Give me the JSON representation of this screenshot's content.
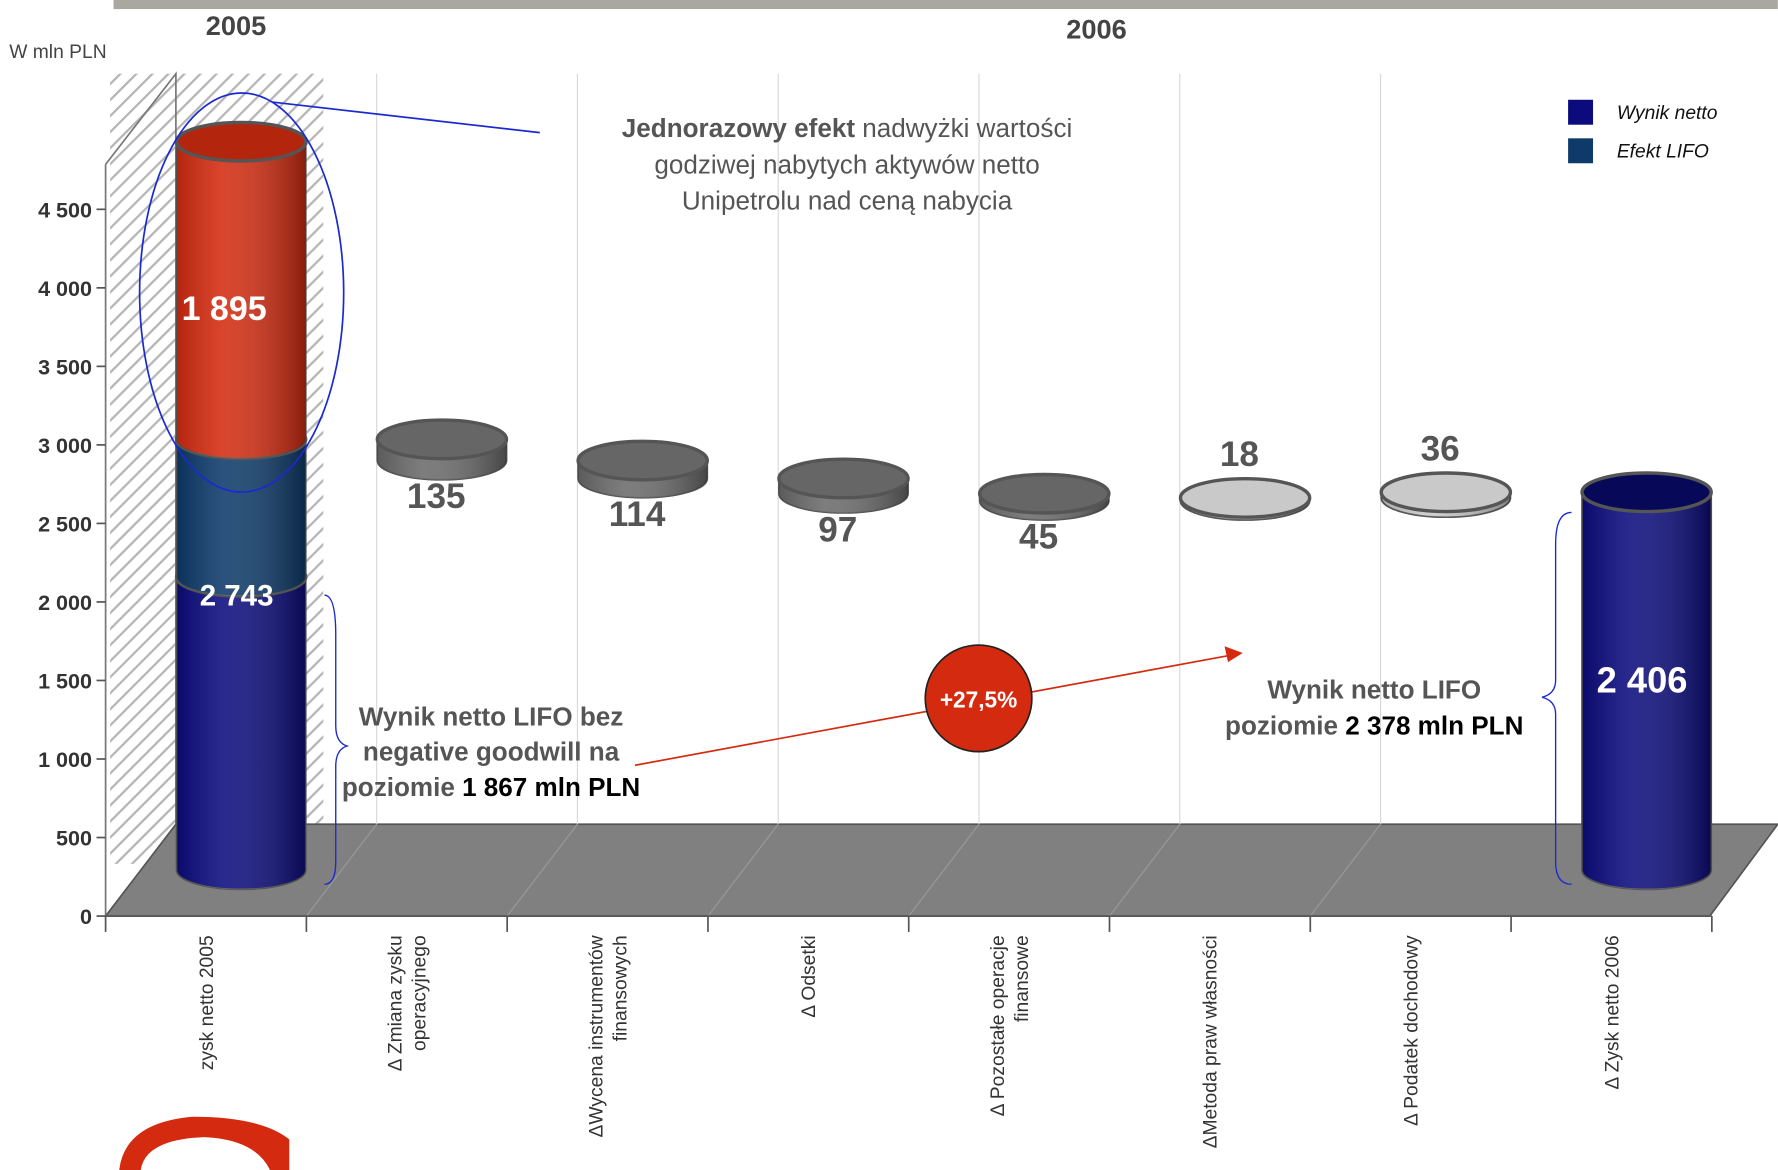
{
  "chart_data": {
    "type": "waterfall",
    "unit_label": "W mln PLN",
    "periods": [
      "2005",
      "2006"
    ],
    "categories": [
      [
        "zysk netto 2005"
      ],
      [
        "Δ Zmiana zysku",
        "operacyjnego"
      ],
      [
        "ΔWycena instrumentów",
        "finansowych"
      ],
      [
        "Δ Odsetki"
      ],
      [
        "Δ Pozostałe operacje",
        "finansowe"
      ],
      [
        "ΔMetoda praw własności"
      ],
      [
        "Δ Podatek dochodowy"
      ],
      [
        "Δ Zysk netto 2006"
      ]
    ],
    "series": [
      {
        "name": "Wynik netto",
        "color": "#0b0b7e",
        "values": [
          1867,
          null,
          null,
          null,
          null,
          null,
          null,
          2406
        ]
      },
      {
        "name": "Efekt LIFO",
        "color": "#0d3a6a",
        "values": [
          876,
          null,
          null,
          null,
          null,
          null,
          null,
          null
        ]
      }
    ],
    "totals": [
      2743,
      null,
      null,
      null,
      null,
      null,
      null,
      2406
    ],
    "total_labels": [
      "2 743",
      null,
      null,
      null,
      null,
      null,
      null,
      "2 406"
    ],
    "steps": [
      null,
      -135,
      -114,
      -97,
      -45,
      18,
      36,
      null
    ],
    "step_labels": [
      null,
      "135",
      "114",
      "97",
      "45",
      "18",
      "36",
      null
    ],
    "step_colors": {
      "decrease": "#6b6b6b",
      "increase": "#c9c9c9"
    },
    "one_time": {
      "value": 1895,
      "label": "1 895",
      "color": "#d42b10"
    },
    "annotations": {
      "one_time_note": [
        [
          {
            "text": "Jednorazowy efekt",
            "bold": true
          },
          {
            "text": " nadwyżki wartości",
            "bold": false
          }
        ],
        [
          {
            "text": "godziwej nabytych aktywów netto",
            "bold": false
          }
        ],
        [
          {
            "text": "Unipetrolu nad ceną nabycia",
            "bold": false
          }
        ]
      ],
      "left_note": [
        [
          {
            "text": "Wynik netto LIFO bez",
            "bold": true
          }
        ],
        [
          {
            "text": "negative goodwill na",
            "bold": true
          }
        ],
        [
          {
            "text": "poziomie ",
            "bold": true
          },
          {
            "text": "1 867 mln PLN",
            "bold": true,
            "dark": true
          }
        ]
      ],
      "right_note": [
        [
          {
            "text": "Wynik netto LIFO",
            "bold": true
          }
        ],
        [
          {
            "text": "poziomie ",
            "bold": true
          },
          {
            "text": "2 378 mln PLN",
            "bold": true,
            "dark": true
          }
        ]
      ],
      "growth": "+27,5%"
    },
    "ylim": [
      0,
      4750
    ],
    "yticks": [
      0,
      500,
      {
        "value": 1000,
        "label": "1 000"
      },
      {
        "value": 1500,
        "label": "1 500"
      },
      {
        "value": 2000,
        "label": "2 000"
      },
      {
        "value": 2500,
        "label": "2 500"
      },
      {
        "value": 3000,
        "label": "3 000"
      },
      {
        "value": 3500,
        "label": "3 500"
      },
      {
        "value": 4000,
        "label": "4 000"
      },
      {
        "value": 4500,
        "label": "4 500"
      }
    ],
    "grid": true
  }
}
